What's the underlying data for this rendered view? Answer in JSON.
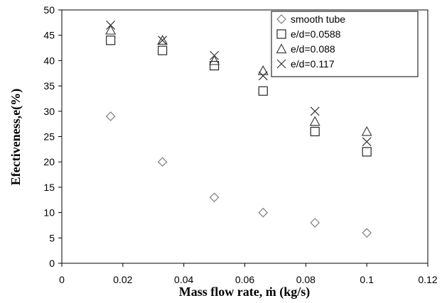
{
  "chart_data": {
    "type": "scatter",
    "xlabel": "Mass flow rate, ṁ (kg/s)",
    "ylabel": "Efectiveness,e(%)",
    "xlim": [
      0,
      0.12
    ],
    "ylim": [
      0,
      50
    ],
    "x_ticks": [
      "0",
      "0.02",
      "0.04",
      "0.06",
      "0.08",
      "0.1",
      "0.12"
    ],
    "y_ticks": [
      "0",
      "5",
      "10",
      "15",
      "20",
      "25",
      "30",
      "35",
      "40",
      "45",
      "50"
    ],
    "grid": false,
    "legend_position": "top-right",
    "x": [
      0.016,
      0.033,
      0.05,
      0.066,
      0.083,
      0.1
    ],
    "series": [
      {
        "name": "smooth tube",
        "marker": "diamond",
        "color": "#7f7f7f",
        "values": [
          29,
          20,
          13,
          10,
          8,
          6
        ]
      },
      {
        "name": "e/d=0.0588",
        "marker": "square",
        "color": "#262626",
        "values": [
          44,
          42,
          39,
          34,
          26,
          22
        ]
      },
      {
        "name": "e/d=0.088",
        "marker": "triangle",
        "color": "#404040",
        "values": [
          46,
          44,
          40,
          38,
          28,
          26
        ]
      },
      {
        "name": "e/d=0.117",
        "marker": "x",
        "color": "#333333",
        "values": [
          47,
          44,
          41,
          37,
          30,
          24
        ]
      }
    ]
  }
}
